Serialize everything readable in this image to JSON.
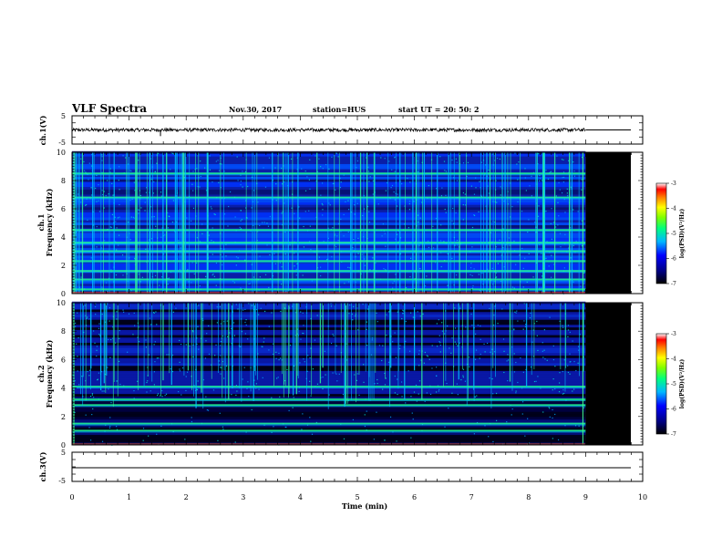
{
  "header": {
    "title": "VLF Spectra",
    "date": "Nov.30, 2017",
    "station": "station=HUS",
    "start": "start  UT  =   20: 50: 2"
  },
  "chart_data": [
    {
      "type": "line",
      "name": "ch1-waveform",
      "ylabel": "ch.1(V)",
      "ylim": [
        -5,
        5
      ],
      "yticks": [
        "5",
        "-5"
      ],
      "xlim": [
        0,
        10
      ],
      "data_end_min": 9.0,
      "baseline": 0,
      "amplitude_range": [
        -0.6,
        0.6
      ]
    },
    {
      "type": "heatmap",
      "name": "ch1-spectrogram",
      "ylabel_top": "ch.1",
      "ylabel_bottom": "Frequency  (kHz)",
      "ylim": [
        0,
        10
      ],
      "yticks": [
        "0",
        "2",
        "4",
        "6",
        "8",
        "10"
      ],
      "xlim": [
        0,
        10
      ],
      "data_end_min": 9.0,
      "colorbar": {
        "label": "log(PSD)(V²/Hz)",
        "range": [
          -7,
          -3
        ],
        "ticks": [
          "-3",
          "-4",
          "-5",
          "-6",
          "-7"
        ]
      },
      "bright_bands_khz": [
        0.3,
        1.0,
        1.6,
        2.3,
        3.0,
        3.6,
        4.5,
        6.8,
        8.5
      ]
    },
    {
      "type": "heatmap",
      "name": "ch2-spectrogram",
      "ylabel_top": "ch.2",
      "ylabel_bottom": "Frequency  (kHz)",
      "ylim": [
        0,
        10
      ],
      "yticks": [
        "0",
        "2",
        "4",
        "6",
        "8",
        "10"
      ],
      "xlim": [
        0,
        10
      ],
      "data_end_min": 9.0,
      "colorbar": {
        "label": "log(PSD)(V²/Hz)",
        "range": [
          -7,
          -3
        ],
        "ticks": [
          "-3",
          "-4",
          "-5",
          "-6",
          "-7"
        ]
      },
      "bright_bands_khz": [
        1.0,
        1.5,
        2.8,
        3.2,
        4.1
      ]
    },
    {
      "type": "line",
      "name": "ch3-waveform",
      "ylabel": "ch.3(V)",
      "ylim": [
        -5,
        5
      ],
      "yticks": [
        "5",
        "-5"
      ],
      "xlim": [
        0,
        10
      ],
      "baseline": 0
    }
  ],
  "xaxis": {
    "label": "Time  (min)",
    "ticks": [
      "0",
      "1",
      "2",
      "3",
      "4",
      "5",
      "6",
      "7",
      "8",
      "9",
      "10"
    ]
  }
}
